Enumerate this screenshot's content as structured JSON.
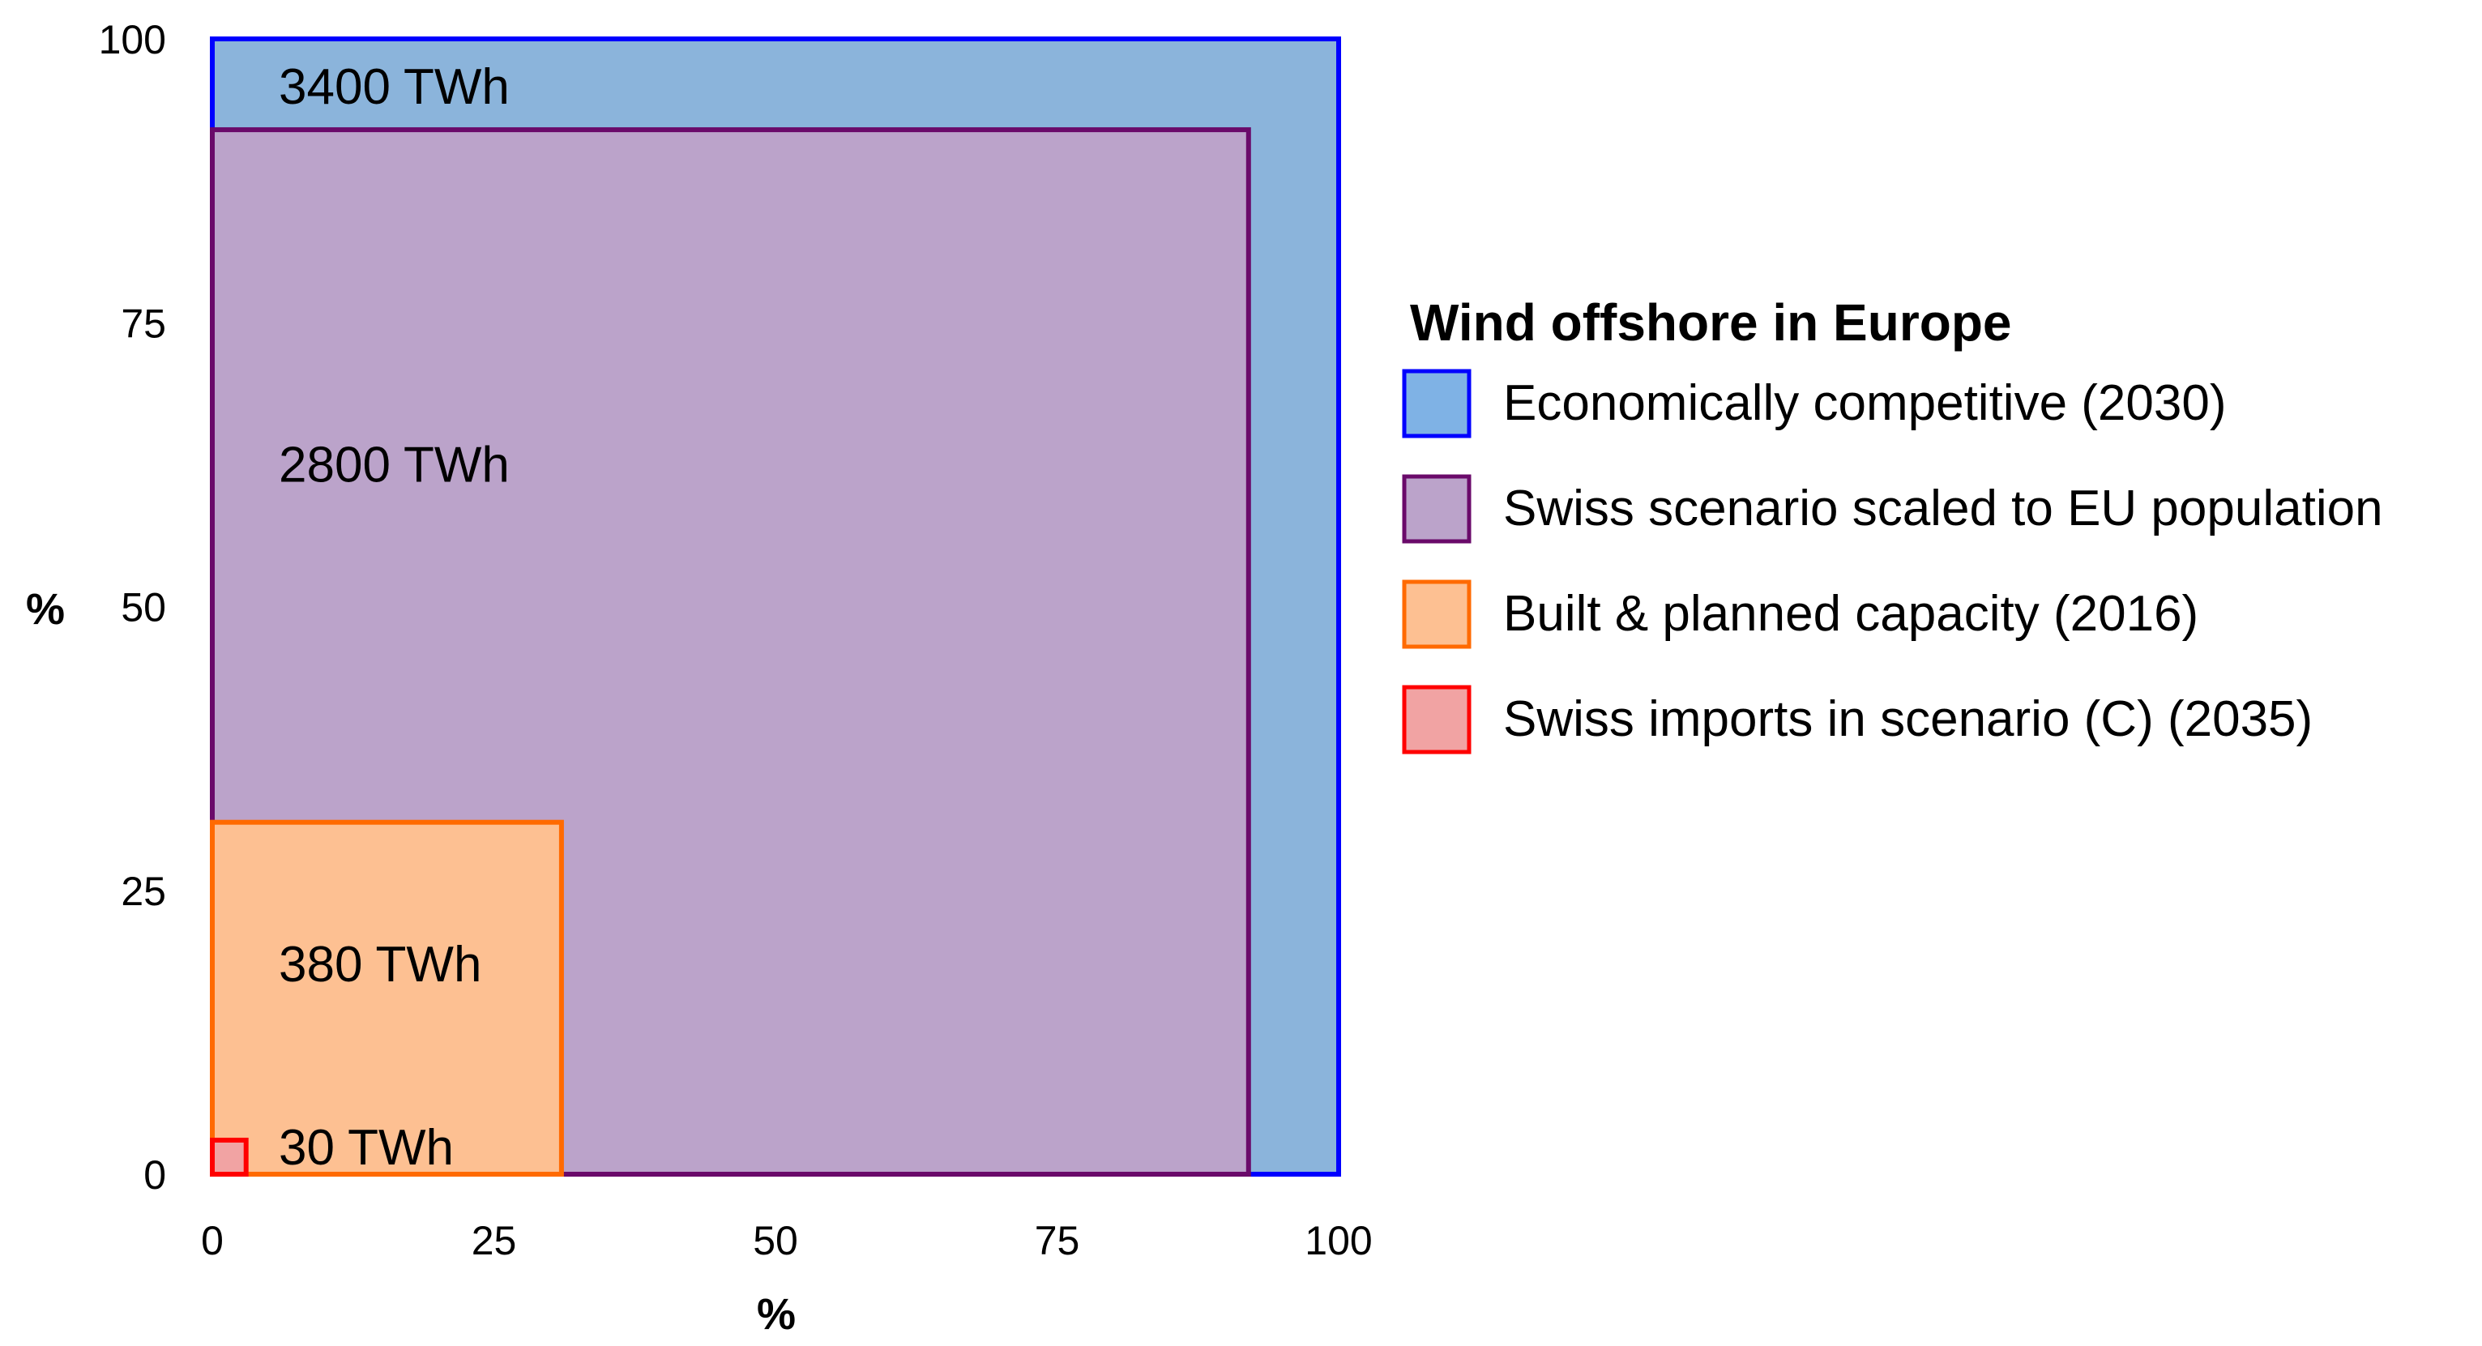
{
  "chart_data": {
    "type": "area",
    "title": "",
    "xlabel": "%",
    "ylabel": "%",
    "xlim": [
      0,
      100
    ],
    "ylim": [
      0,
      100
    ],
    "xticks": [
      "0",
      "25",
      "50",
      "75",
      "100"
    ],
    "yticks": [
      "0",
      "25",
      "50",
      "75",
      "100"
    ],
    "grid": false,
    "legend": {
      "title": "Wind offshore in Europe",
      "placement": "right"
    },
    "series": [
      {
        "name": "Economically competitive (2030)",
        "side_percent": 100,
        "value_label": "3400 TWh",
        "fill": "#8bb4db",
        "stroke": "#0000ff",
        "legend_fill": "#7fb2e5"
      },
      {
        "name": "Swiss scenario scaled to EU population",
        "side_percent": 92,
        "value_label": "2800 TWh",
        "fill": "#bba3ca",
        "stroke": "#6a0a6a",
        "legend_fill": "#bba3ca"
      },
      {
        "name": "Built & planned capacity (2016)",
        "side_percent": 31,
        "value_label": "380 TWh",
        "fill": "#fdc092",
        "stroke": "#ff6a00",
        "legend_fill": "#fdc092"
      },
      {
        "name": "Swiss imports in scenario (C) (2035)",
        "side_percent": 3,
        "value_label": "30 TWh",
        "fill": "#f1a3a3",
        "stroke": "#ff0000",
        "legend_fill": "#f1a3a3"
      }
    ]
  }
}
